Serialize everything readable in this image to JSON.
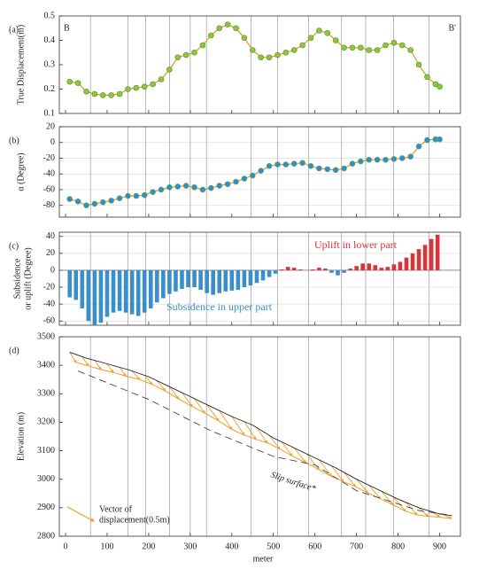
{
  "section_lines": [
    60,
    150,
    193,
    250,
    300,
    339,
    446,
    510,
    585,
    664,
    722,
    789,
    874
  ],
  "xlabel": "meter",
  "chart_data": [
    {
      "type": "line",
      "label": "(a)",
      "ylabel": "True Displacement(m)",
      "annotations": [
        "B",
        "B'"
      ],
      "x": [
        10,
        30,
        50,
        70,
        90,
        110,
        130,
        150,
        170,
        190,
        210,
        230,
        250,
        270,
        290,
        310,
        330,
        350,
        370,
        390,
        410,
        430,
        450,
        470,
        490,
        510,
        530,
        550,
        570,
        590,
        610,
        630,
        650,
        670,
        690,
        710,
        730,
        750,
        770,
        790,
        810,
        830,
        850,
        870,
        890,
        900
      ],
      "values": [
        0.23,
        0.225,
        0.19,
        0.18,
        0.175,
        0.175,
        0.18,
        0.2,
        0.205,
        0.21,
        0.22,
        0.24,
        0.28,
        0.33,
        0.34,
        0.35,
        0.38,
        0.42,
        0.45,
        0.465,
        0.45,
        0.41,
        0.36,
        0.33,
        0.33,
        0.34,
        0.35,
        0.36,
        0.38,
        0.41,
        0.44,
        0.43,
        0.4,
        0.37,
        0.37,
        0.37,
        0.36,
        0.36,
        0.38,
        0.39,
        0.38,
        0.36,
        0.3,
        0.25,
        0.22,
        0.21
      ],
      "ylim": [
        0.1,
        0.5
      ],
      "yticks": [
        0.1,
        0.2,
        0.3,
        0.4,
        0.5
      ],
      "xlim": [
        -15,
        950
      ],
      "xticks": [
        0,
        100,
        200,
        300,
        400,
        500,
        600,
        700,
        800,
        900
      ],
      "line_color": "#e8961e",
      "marker_color": "#8cc63f",
      "marker_edge": "#5a8f2a",
      "grid": false
    },
    {
      "type": "line",
      "label": "(b)",
      "ylabel": "α (Degree)",
      "x": [
        10,
        30,
        50,
        70,
        90,
        110,
        130,
        150,
        170,
        190,
        210,
        230,
        250,
        270,
        290,
        310,
        330,
        350,
        370,
        390,
        410,
        430,
        450,
        470,
        490,
        510,
        530,
        550,
        570,
        590,
        610,
        630,
        650,
        670,
        690,
        710,
        730,
        750,
        770,
        790,
        810,
        830,
        850,
        870,
        890,
        900
      ],
      "values": [
        -72,
        -75,
        -80,
        -78,
        -76,
        -74,
        -71,
        -68,
        -68,
        -67,
        -63,
        -60,
        -57,
        -56,
        -55,
        -57,
        -60,
        -58,
        -55,
        -53,
        -50,
        -46,
        -42,
        -36,
        -30,
        -28,
        -28,
        -27,
        -26,
        -30,
        -33,
        -34,
        -35,
        -33,
        -27,
        -24,
        -22,
        -22,
        -22,
        -21,
        -20,
        -18,
        -5,
        3,
        4,
        4
      ],
      "ylim": [
        -95,
        20
      ],
      "yticks": [
        -80,
        -60,
        -40,
        -20,
        0,
        20
      ],
      "xlim": [
        -15,
        950
      ],
      "xticks": [
        0,
        100,
        200,
        300,
        400,
        500,
        600,
        700,
        800,
        900
      ],
      "line_color": "#e8961e",
      "marker_color": "#2e8fd0",
      "marker_edge": "#6aa84f",
      "grid": true
    },
    {
      "type": "bar",
      "label": "(c)",
      "ylabel": [
        "Subsidence",
        "or uplift (Degree)"
      ],
      "annotations": [
        {
          "text": "Uplift in lower part",
          "color": "#d8343b"
        },
        {
          "text": "Subsidence in upper part",
          "color": "#3a8fc8"
        }
      ],
      "x": [
        10,
        25,
        40,
        55,
        70,
        85,
        100,
        115,
        130,
        145,
        160,
        175,
        190,
        205,
        220,
        235,
        250,
        265,
        280,
        295,
        310,
        325,
        340,
        355,
        370,
        385,
        400,
        415,
        430,
        445,
        460,
        475,
        490,
        505,
        520,
        535,
        550,
        565,
        580,
        595,
        610,
        625,
        640,
        655,
        670,
        685,
        700,
        715,
        730,
        745,
        760,
        775,
        790,
        805,
        820,
        835,
        850,
        865,
        880,
        895
      ],
      "values": [
        -32,
        -35,
        -45,
        -60,
        -65,
        -62,
        -55,
        -50,
        -48,
        -50,
        -52,
        -54,
        -50,
        -45,
        -38,
        -33,
        -28,
        -25,
        -22,
        -20,
        -20,
        -23,
        -27,
        -29,
        -27,
        -25,
        -24,
        -23,
        -20,
        -18,
        -15,
        -12,
        -8,
        -4,
        1,
        4,
        3,
        1,
        0,
        1,
        3,
        2,
        -3,
        -6,
        -3,
        2,
        5,
        8,
        8,
        6,
        3,
        4,
        7,
        10,
        15,
        20,
        25,
        30,
        37,
        42
      ],
      "ylim": [
        -65,
        45
      ],
      "yticks": [
        -60,
        -40,
        -20,
        0,
        20,
        40
      ],
      "xlim": [
        -15,
        950
      ],
      "xticks": [
        0,
        100,
        200,
        300,
        400,
        500,
        600,
        700,
        800,
        900
      ],
      "positive_color": "#d8343b",
      "negative_color": "#3a8fc8",
      "grid": true
    },
    {
      "type": "profile",
      "label": "(d)",
      "ylabel": "Elevation (m)",
      "surface": {
        "x": [
          10,
          50,
          100,
          150,
          200,
          250,
          300,
          350,
          400,
          450,
          500,
          550,
          600,
          650,
          700,
          750,
          800,
          850,
          900,
          930
        ],
        "y": [
          3446,
          3425,
          3405,
          3385,
          3360,
          3325,
          3290,
          3255,
          3220,
          3190,
          3145,
          3110,
          3075,
          3040,
          3000,
          2965,
          2930,
          2900,
          2878,
          2872
        ],
        "color": "#222222"
      },
      "slip_surface": {
        "x": [
          30,
          200,
          350,
          500,
          600,
          700,
          850,
          920
        ],
        "y": [
          3380,
          3280,
          3170,
          3080,
          3050,
          2960,
          2890,
          2875
        ],
        "color": "#444444",
        "label": "Slip surface*"
      },
      "vectors": {
        "x": [
          10,
          40,
          70,
          100,
          130,
          160,
          190,
          220,
          250,
          280,
          310,
          340,
          370,
          400,
          430,
          460,
          490,
          520,
          550,
          580,
          610,
          640,
          670,
          700,
          730,
          760,
          790,
          820,
          850,
          880,
          910
        ],
        "y": [
          3446,
          3430,
          3417,
          3405,
          3393,
          3380,
          3365,
          3346,
          3325,
          3304,
          3283,
          3262,
          3241,
          3220,
          3202,
          3181,
          3154,
          3131,
          3110,
          3089,
          3068,
          3047,
          3024,
          3000,
          2979,
          2958,
          2936,
          2918,
          2900,
          2887,
          2875
        ],
        "x_end": [
          25,
          55,
          85,
          115,
          145,
          178,
          208,
          240,
          272,
          305,
          335,
          368,
          400,
          430,
          458,
          485,
          515,
          545,
          578,
          610,
          640,
          668,
          697,
          727,
          757,
          788,
          818,
          845,
          872,
          900,
          928
        ],
        "y_end": [
          3410,
          3398,
          3385,
          3375,
          3362,
          3350,
          3333,
          3310,
          3282,
          3255,
          3232,
          3205,
          3175,
          3155,
          3140,
          3128,
          3106,
          3082,
          3058,
          3033,
          3010,
          2992,
          2975,
          2952,
          2932,
          2910,
          2888,
          2875,
          2870,
          2867,
          2862
        ],
        "color": "#f39c1f",
        "label": [
          "Vector of",
          "displacement(0.5m)"
        ]
      },
      "ylim": [
        2800,
        3500
      ],
      "yticks": [
        2800,
        2900,
        3000,
        3100,
        3200,
        3300,
        3400,
        3500
      ],
      "xlim": [
        -15,
        950
      ],
      "xticks": [
        0,
        100,
        200,
        300,
        400,
        500,
        600,
        700,
        800,
        900
      ],
      "grid": false
    }
  ]
}
